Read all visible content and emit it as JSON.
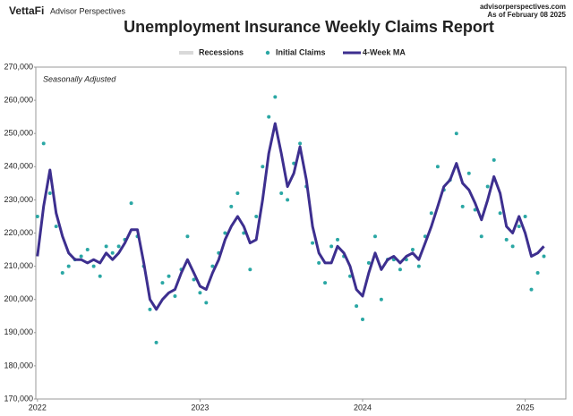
{
  "header": {
    "brand": "VettaFi",
    "brand_sub": "Advisor Perspectives",
    "site": "advisorperspectives.com",
    "date": "As of February 08 2025"
  },
  "chart_data": {
    "type": "line",
    "title": "Unemployment Insurance Weekly Claims Report",
    "annotation": "Seasonally Adjusted",
    "recessions": {
      "name": "Recessions",
      "color": "#d9d9d9"
    },
    "x": [
      2022,
      2022.038,
      2022.077,
      2022.115,
      2022.154,
      2022.192,
      2022.231,
      2022.269,
      2022.308,
      2022.346,
      2022.385,
      2022.423,
      2022.462,
      2022.5,
      2022.538,
      2022.577,
      2022.615,
      2022.654,
      2022.692,
      2022.731,
      2022.769,
      2022.808,
      2022.846,
      2022.885,
      2022.923,
      2022.962,
      2023,
      2023.038,
      2023.077,
      2023.115,
      2023.154,
      2023.192,
      2023.231,
      2023.269,
      2023.308,
      2023.346,
      2023.385,
      2023.423,
      2023.462,
      2023.5,
      2023.538,
      2023.577,
      2023.615,
      2023.654,
      2023.692,
      2023.731,
      2023.769,
      2023.808,
      2023.846,
      2023.885,
      2023.923,
      2023.962,
      2024,
      2024.038,
      2024.077,
      2024.115,
      2024.154,
      2024.192,
      2024.231,
      2024.269,
      2024.308,
      2024.346,
      2024.385,
      2024.423,
      2024.462,
      2024.5,
      2024.538,
      2024.577,
      2024.615,
      2024.654,
      2024.692,
      2024.731,
      2024.769,
      2024.808,
      2024.846,
      2024.885,
      2024.923,
      2024.962,
      2025,
      2025.038,
      2025.077,
      2025.115
    ],
    "series": [
      {
        "name": "Initial Claims",
        "style": "dots",
        "color": "#2aa7a4",
        "values": [
          225000,
          247000,
          232000,
          222000,
          208000,
          210000,
          212000,
          213000,
          215000,
          210000,
          207000,
          216000,
          214000,
          216000,
          218000,
          229000,
          219000,
          210000,
          197000,
          187000,
          205000,
          207000,
          201000,
          209000,
          219000,
          206000,
          202000,
          199000,
          210000,
          214000,
          220000,
          228000,
          232000,
          220000,
          209000,
          225000,
          240000,
          255000,
          261000,
          232000,
          230000,
          241000,
          247000,
          234000,
          217000,
          211000,
          205000,
          216000,
          218000,
          213000,
          207000,
          198000,
          194000,
          211000,
          219000,
          200000,
          212000,
          212000,
          209000,
          212000,
          215000,
          210000,
          219000,
          226000,
          240000,
          233000,
          236000,
          250000,
          228000,
          238000,
          227000,
          219000,
          234000,
          242000,
          226000,
          218000,
          216000,
          222000,
          225000,
          203000,
          208000,
          213000
        ]
      },
      {
        "name": "4-Week MA",
        "style": "line",
        "color": "#3d2f8f",
        "values": [
          213000,
          228000,
          239000,
          226000,
          219000,
          214000,
          212000,
          212000,
          211000,
          212000,
          211000,
          214000,
          212000,
          214000,
          217000,
          221000,
          221000,
          211000,
          200000,
          197000,
          200000,
          202000,
          203000,
          208000,
          212000,
          208000,
          204000,
          203000,
          208000,
          212000,
          218000,
          222000,
          225000,
          222000,
          217000,
          218000,
          230000,
          244000,
          253000,
          244000,
          234000,
          238000,
          246000,
          236000,
          222000,
          214000,
          211000,
          211000,
          216000,
          214000,
          210000,
          203000,
          201000,
          208000,
          214000,
          209000,
          212000,
          213000,
          211000,
          213000,
          214000,
          212000,
          217000,
          222000,
          228000,
          234000,
          236000,
          241000,
          235000,
          233000,
          229000,
          224000,
          230000,
          237000,
          232000,
          222000,
          220000,
          225000,
          220000,
          213000,
          214000,
          216000
        ]
      }
    ],
    "xlim": [
      2021.99,
      2025.25
    ],
    "xticks": [
      2022,
      2023,
      2024,
      2025
    ],
    "ylim": [
      170000,
      270000
    ],
    "yticks": [
      {
        "value": 170000,
        "label": "170,000"
      },
      {
        "value": 180000,
        "label": "180,000"
      },
      {
        "value": 190000,
        "label": "190,000"
      },
      {
        "value": 200000,
        "label": "200,000"
      },
      {
        "value": 210000,
        "label": "210,000"
      },
      {
        "value": 220000,
        "label": "220,000"
      },
      {
        "value": 230000,
        "label": "230,000"
      },
      {
        "value": 240000,
        "label": "240,000"
      },
      {
        "value": 250000,
        "label": "250,000"
      },
      {
        "value": 260000,
        "label": "260,000"
      },
      {
        "value": 270000,
        "label": "270,000"
      }
    ],
    "grid": false
  }
}
